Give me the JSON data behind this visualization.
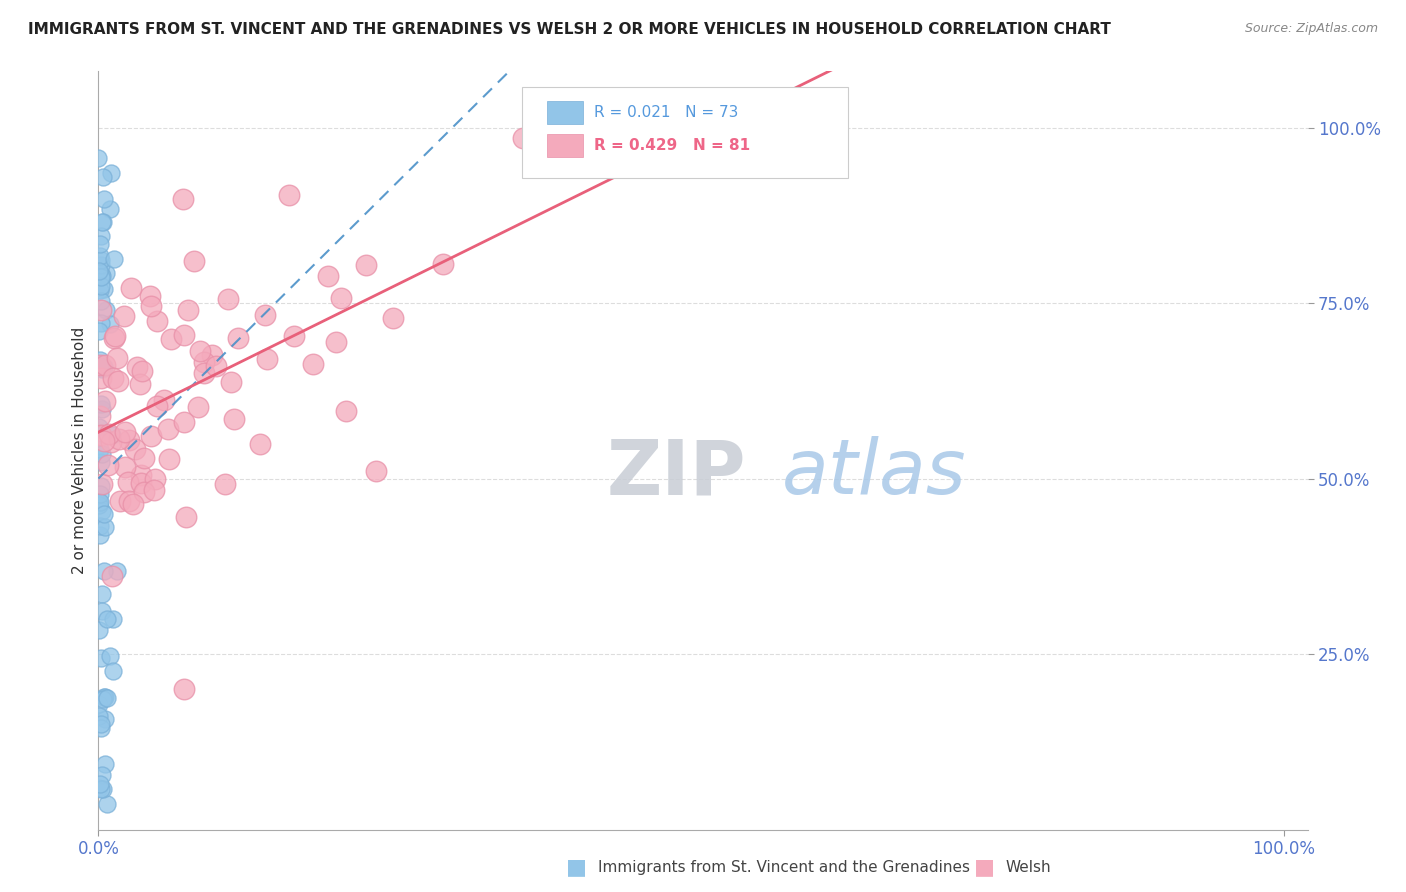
{
  "title": "IMMIGRANTS FROM ST. VINCENT AND THE GRENADINES VS WELSH 2 OR MORE VEHICLES IN HOUSEHOLD CORRELATION CHART",
  "source": "Source: ZipAtlas.com",
  "ylabel": "2 or more Vehicles in Household",
  "y_ticks_labels": [
    "25.0%",
    "50.0%",
    "75.0%",
    "100.0%"
  ],
  "y_tick_vals": [
    0.25,
    0.5,
    0.75,
    1.0
  ],
  "x_ticks_labels": [
    "0.0%",
    "100.0%"
  ],
  "x_tick_vals": [
    0.0,
    1.0
  ],
  "legend_blue": "Immigrants from St. Vincent and the Grenadines",
  "legend_pink": "Welsh",
  "R_blue": 0.021,
  "N_blue": 73,
  "R_pink": 0.429,
  "N_pink": 81,
  "blue_color": "#92C5E8",
  "blue_edge_color": "#7AB0D8",
  "pink_color": "#F4AABC",
  "pink_edge_color": "#E890A8",
  "blue_line_color": "#4A90C8",
  "pink_line_color": "#E8607A",
  "background": "#FFFFFF",
  "grid_color": "#DDDDDD",
  "title_color": "#222222",
  "source_color": "#888888",
  "axis_label_color": "#333333",
  "tick_color": "#5577CC",
  "legend_R_blue_color": "#5599DD",
  "legend_R_pink_color": "#EE6688",
  "legend_N_blue_color": "#5599DD",
  "legend_N_pink_color": "#EE6688"
}
